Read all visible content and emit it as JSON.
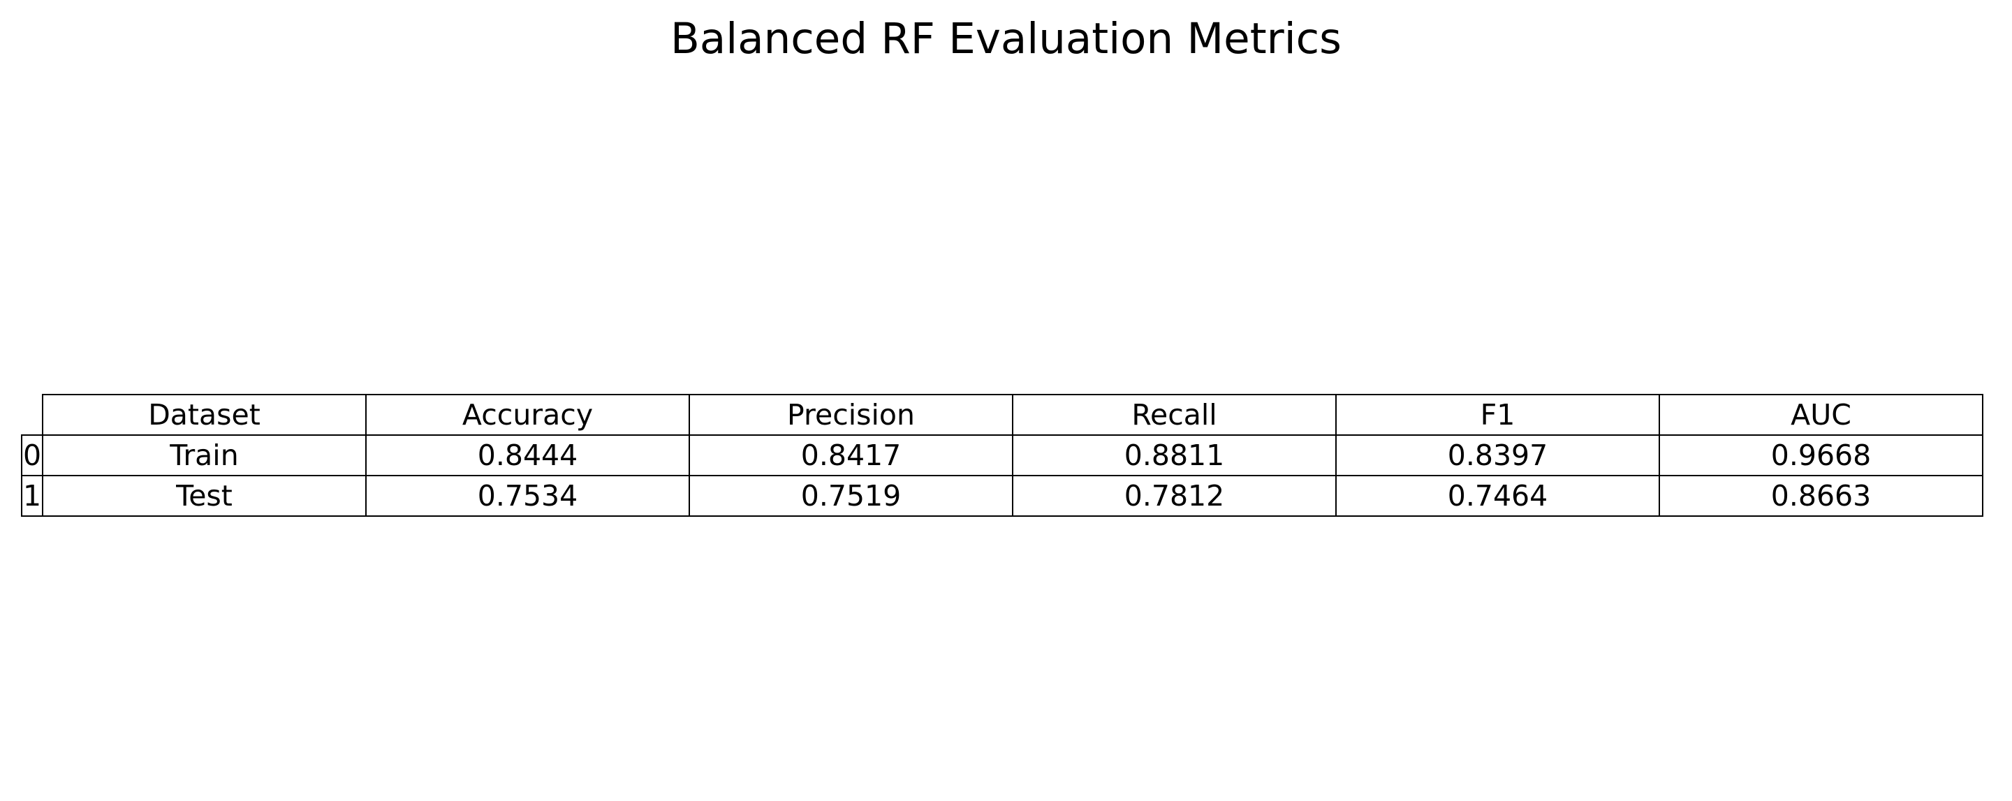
{
  "chart_data": {
    "type": "table",
    "title": "Balanced RF Evaluation Metrics",
    "columns": [
      "Dataset",
      "Accuracy",
      "Precision",
      "Recall",
      "F1",
      "AUC"
    ],
    "index": [
      "0",
      "1"
    ],
    "rows": [
      [
        "Train",
        "0.8444",
        "0.8417",
        "0.8811",
        "0.8397",
        "0.9668"
      ],
      [
        "Test",
        "0.7534",
        "0.7519",
        "0.7812",
        "0.7464",
        "0.8663"
      ]
    ]
  }
}
